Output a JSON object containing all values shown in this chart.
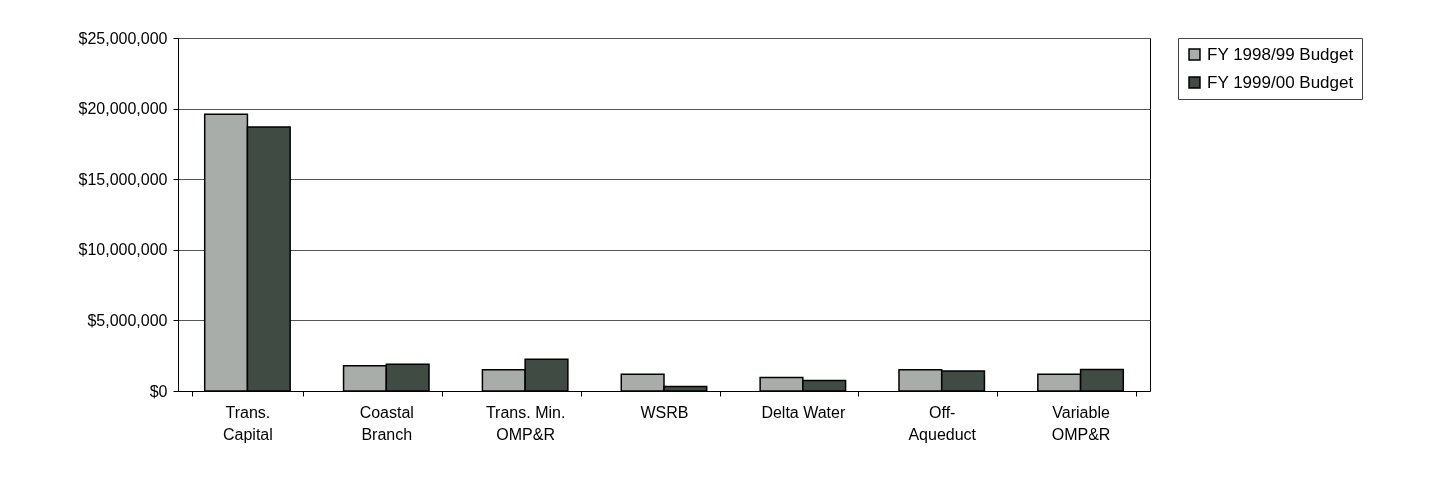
{
  "chart_data": {
    "type": "bar",
    "categories": [
      "Trans.\nCapital",
      "Coastal\nBranch",
      "Trans. Min.\nOMP&R",
      "WSRB",
      "Delta Water",
      "Off-\nAqueduct",
      "Variable\nOMP&R"
    ],
    "series": [
      {
        "name": "FY 1998/99 Budget",
        "color": "#a9ada9",
        "values": [
          19600000,
          1780000,
          1500000,
          1180000,
          960000,
          1500000,
          1180000
        ]
      },
      {
        "name": "FY 1999/00 Budget",
        "color": "#3f4b43",
        "values": [
          18700000,
          1900000,
          2240000,
          310000,
          740000,
          1410000,
          1520000
        ]
      }
    ],
    "ylim": [
      0,
      25000000
    ],
    "yticks": [
      {
        "value": 0,
        "label": "$0"
      },
      {
        "value": 5000000,
        "label": "$5,000,000"
      },
      {
        "value": 10000000,
        "label": "$10,000,000"
      },
      {
        "value": 15000000,
        "label": "$15,000,000"
      },
      {
        "value": 20000000,
        "label": "$20,000,000"
      },
      {
        "value": 25000000,
        "label": "$25,000,000"
      }
    ],
    "grid": "y",
    "legend": "right"
  }
}
